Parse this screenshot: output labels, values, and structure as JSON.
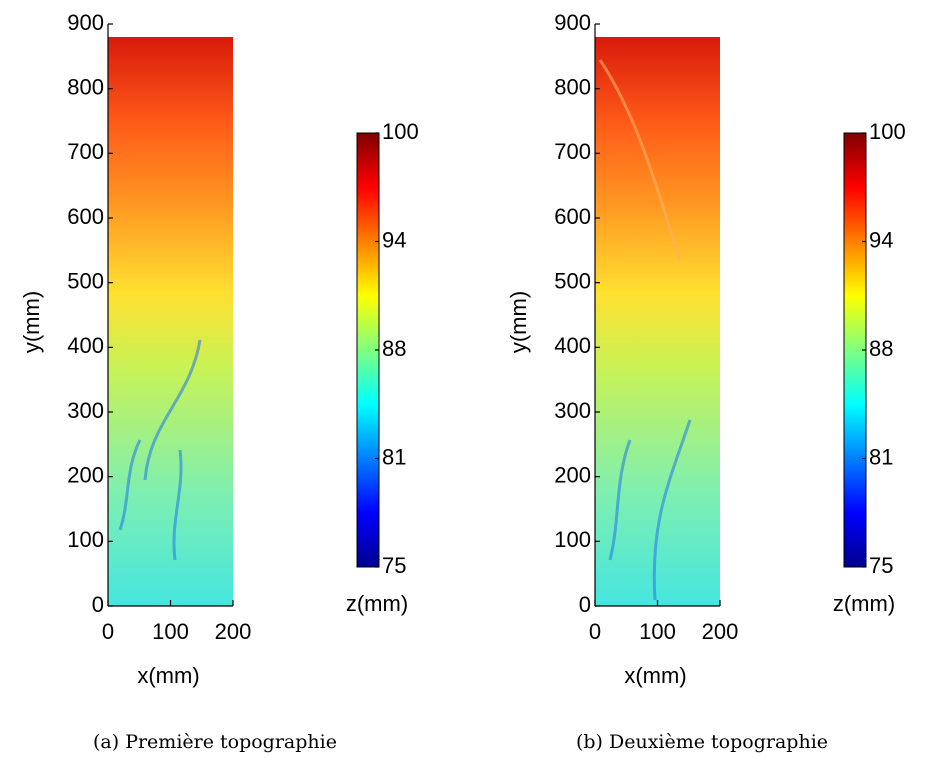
{
  "chart_data": [
    {
      "type": "heatmap",
      "xlabel": "x(mm)",
      "ylabel": "y(mm)",
      "xlim": [
        0,
        200
      ],
      "ylim": [
        0,
        900
      ],
      "xticks": [
        0,
        100,
        200
      ],
      "yticks": [
        0,
        100,
        200,
        300,
        400,
        500,
        600,
        700,
        800,
        900
      ],
      "colorbar": {
        "label": "z(mm)",
        "lim": [
          75,
          100
        ],
        "colormap": "jet",
        "ticks": [
          75,
          {
            "value": 81.25,
            "label": "81"
          },
          {
            "value": 87.5,
            "label": "88"
          },
          {
            "value": 93.75,
            "label": "94"
          },
          100
        ]
      },
      "caption": "(a) Première topographie"
    },
    {
      "type": "heatmap",
      "xlabel": "x(mm)",
      "ylabel": "y(mm)",
      "xlim": [
        0,
        200
      ],
      "ylim": [
        0,
        900
      ],
      "xticks": [
        0,
        100,
        200
      ],
      "yticks": [
        0,
        100,
        200,
        300,
        400,
        500,
        600,
        700,
        800,
        900
      ],
      "colorbar": {
        "label": "z(mm)",
        "lim": [
          75,
          100
        ],
        "colormap": "jet",
        "ticks": [
          75,
          {
            "value": 81.25,
            "label": "81"
          },
          {
            "value": 87.5,
            "label": "88"
          },
          {
            "value": 93.75,
            "label": "94"
          },
          100
        ]
      },
      "caption": "(b) Deuxième topographie"
    }
  ]
}
